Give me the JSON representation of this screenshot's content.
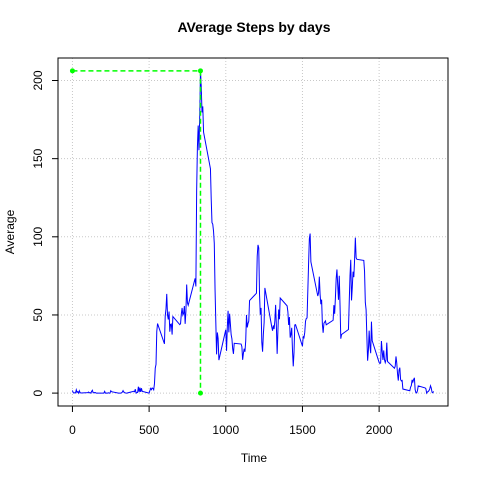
{
  "chart_data": {
    "type": "line",
    "title": "AVerage Steps by days",
    "x_label": "Time",
    "y_label": "Average",
    "xlim": [
      -94.2,
      2449.2
    ],
    "ylim": [
      -8.25,
      214.4
    ],
    "xticks": [
      0,
      500,
      1000,
      1500,
      2000
    ],
    "yticks": [
      0,
      50,
      100,
      150,
      200
    ],
    "grid": true,
    "x": [
      0,
      5,
      10,
      15,
      20,
      25,
      30,
      35,
      40,
      45,
      50,
      55,
      100,
      105,
      110,
      115,
      120,
      125,
      130,
      135,
      140,
      145,
      150,
      155,
      200,
      205,
      210,
      215,
      220,
      225,
      230,
      235,
      240,
      245,
      250,
      255,
      300,
      305,
      310,
      315,
      320,
      325,
      330,
      335,
      340,
      345,
      350,
      355,
      400,
      405,
      410,
      415,
      420,
      425,
      430,
      435,
      440,
      445,
      450,
      455,
      500,
      505,
      510,
      515,
      520,
      525,
      530,
      535,
      540,
      545,
      550,
      555,
      600,
      605,
      610,
      615,
      620,
      625,
      630,
      635,
      640,
      645,
      650,
      655,
      700,
      705,
      710,
      715,
      720,
      725,
      730,
      735,
      740,
      745,
      750,
      755,
      800,
      805,
      810,
      815,
      820,
      825,
      830,
      835,
      840,
      845,
      850,
      855,
      900,
      905,
      910,
      915,
      920,
      925,
      930,
      935,
      940,
      945,
      950,
      955,
      1000,
      1005,
      1010,
      1015,
      1020,
      1025,
      1030,
      1035,
      1040,
      1045,
      1050,
      1055,
      1100,
      1105,
      1110,
      1115,
      1120,
      1125,
      1130,
      1135,
      1140,
      1145,
      1150,
      1155,
      1200,
      1205,
      1210,
      1215,
      1220,
      1225,
      1230,
      1235,
      1240,
      1245,
      1250,
      1255,
      1300,
      1305,
      1310,
      1315,
      1320,
      1325,
      1330,
      1335,
      1340,
      1345,
      1350,
      1355,
      1400,
      1405,
      1410,
      1415,
      1420,
      1425,
      1430,
      1435,
      1440,
      1445,
      1450,
      1455,
      1500,
      1505,
      1510,
      1515,
      1520,
      1525,
      1530,
      1535,
      1540,
      1545,
      1550,
      1555,
      1600,
      1605,
      1610,
      1615,
      1620,
      1625,
      1630,
      1635,
      1640,
      1645,
      1650,
      1655,
      1700,
      1705,
      1710,
      1715,
      1720,
      1725,
      1730,
      1735,
      1740,
      1745,
      1750,
      1755,
      1800,
      1805,
      1810,
      1815,
      1820,
      1825,
      1830,
      1835,
      1840,
      1845,
      1850,
      1855,
      1900,
      1905,
      1910,
      1915,
      1920,
      1925,
      1930,
      1935,
      1940,
      1945,
      1950,
      1955,
      2000,
      2005,
      2010,
      2015,
      2020,
      2025,
      2030,
      2035,
      2040,
      2045,
      2050,
      2055,
      2100,
      2105,
      2110,
      2115,
      2120,
      2125,
      2130,
      2135,
      2140,
      2145,
      2150,
      2155,
      2200,
      2205,
      2210,
      2215,
      2220,
      2225,
      2230,
      2235,
      2240,
      2245,
      2250,
      2255,
      2300,
      2305,
      2310,
      2315,
      2320,
      2325,
      2330,
      2335,
      2340,
      2345,
      2350,
      2355
    ],
    "series": [
      {
        "color": "#0000ff",
        "values": [
          1.7,
          0.3,
          0.1,
          0.2,
          0.1,
          2.1,
          0.5,
          0.9,
          0,
          1.5,
          0.3,
          0.1,
          0.3,
          0.7,
          0.2,
          0.3,
          0,
          1.1,
          1.8,
          0.2,
          0.2,
          0.4,
          0.3,
          0,
          0,
          0,
          1.1,
          0,
          0,
          0.1,
          0,
          0.2,
          0,
          0,
          1.5,
          0.9,
          0,
          0,
          0,
          0,
          0.2,
          0.6,
          1.6,
          0.6,
          0.5,
          0.1,
          0,
          0,
          1.2,
          0.9,
          2.5,
          0,
          0.3,
          0.4,
          4.1,
          0.7,
          3.5,
          0.8,
          3.1,
          1.1,
          0,
          1.6,
          3,
          2.2,
          3.3,
          3,
          2.1,
          6.1,
          16,
          18.3,
          39.5,
          44.5,
          31.5,
          49.3,
          53.8,
          63.5,
          50,
          47.1,
          52.2,
          39.3,
          44,
          44.2,
          37.4,
          49,
          43.8,
          44.4,
          50.5,
          54.5,
          49.9,
          51,
          55.7,
          44.3,
          52.3,
          69.5,
          57.8,
          56.2,
          73.4,
          68.2,
          129.4,
          157.5,
          171.2,
          155.4,
          177.3,
          206.2,
          195.9,
          179.6,
          183.4,
          167,
          143.5,
          124,
          109.1,
          108.1,
          103.7,
          95.9,
          66.2,
          45.2,
          24.8,
          38.8,
          35,
          21.1,
          40.6,
          27,
          42.4,
          52.7,
          38.9,
          50.8,
          44.3,
          37.4,
          34.7,
          28.3,
          25.1,
          31.9,
          31.4,
          29.7,
          21.3,
          25.5,
          28.4,
          26.5,
          33.4,
          50,
          42,
          44.6,
          46,
          59.2,
          63.9,
          87.7,
          94.8,
          92.8,
          63.4,
          50.2,
          54.5,
          32.4,
          26.5,
          37.7,
          45.1,
          67.3,
          42.3,
          39.9,
          43.3,
          41,
          46.2,
          56.4,
          42.8,
          25.1,
          40,
          53.5,
          47.3,
          60.8,
          55.8,
          52,
          43.6,
          48.7,
          35.5,
          37.5,
          41.8,
          27.5,
          17.1,
          26.1,
          43.6,
          43.8,
          30,
          36.1,
          35.5,
          38.8,
          46,
          47.8,
          48.1,
          65.3,
          82.9,
          98.7,
          102.1,
          84,
          62.1,
          64.1,
          74.5,
          63.2,
          56.9,
          59.8,
          43.9,
          38.6,
          44.7,
          45.5,
          46.2,
          43.7,
          46.6,
          56.3,
          50.7,
          61.2,
          73.4,
          79.1,
          68.9,
          59.7,
          75.1,
          56.5,
          34.8,
          37.5,
          40.7,
          58,
          74.7,
          85.3,
          59.3,
          67.8,
          77.7,
          74.2,
          85.3,
          99.5,
          86.6,
          85.6,
          84.9,
          77.8,
          58,
          53.4,
          36.3,
          20.7,
          27.4,
          40,
          30.2,
          25.5,
          45.7,
          33.5,
          19.6,
          19,
          19.3,
          33.3,
          26.8,
          21.2,
          27.3,
          21.3,
          19.5,
          21.3,
          32.3,
          20.2,
          15.9,
          17.2,
          23.5,
          19.2,
          12.5,
          8,
          14.7,
          16.3,
          8.7,
          7.8,
          8.1,
          2.6,
          1.5,
          3.7,
          4.8,
          8.5,
          7.1,
          8.7,
          9.8,
          2.2,
          0.3,
          0.1,
          1.6,
          4.6,
          3.3,
          2.8,
          0,
          0.8,
          1,
          1.6,
          2.6,
          4.7,
          3.3,
          0.6,
          0.2,
          1.1
        ]
      }
    ],
    "highlight": {
      "color": "#00ff00",
      "x": [
        0,
        835,
        835
      ],
      "values": [
        206.2,
        206.2,
        0
      ]
    }
  }
}
